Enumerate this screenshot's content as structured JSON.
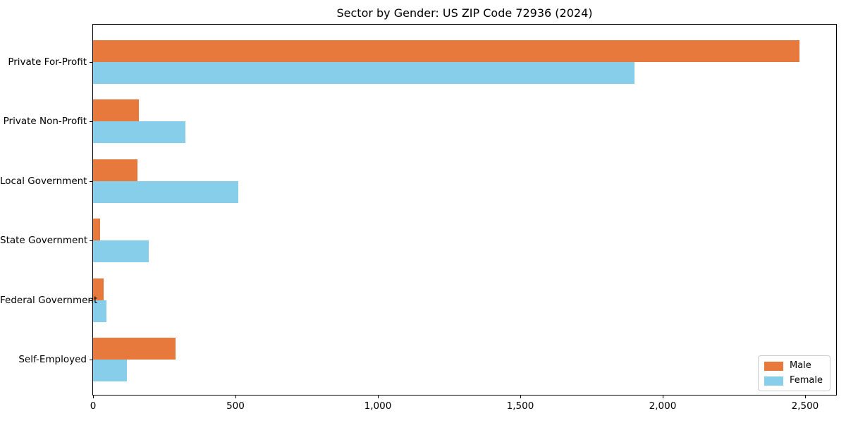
{
  "figure": {
    "title": "Sector by Gender: US ZIP Code 72936 (2024)"
  },
  "chart_data": {
    "type": "bar",
    "orientation": "horizontal",
    "title": "Sector by Gender: US ZIP Code 72936 (2024)",
    "categories": [
      "Private For-Profit",
      "Private Non-Profit",
      "Local Government",
      "State Government",
      "Federal Government",
      "Self-Employed"
    ],
    "series": [
      {
        "name": "Male",
        "color": "#e8793d",
        "values": [
          2480,
          160,
          155,
          25,
          38,
          290
        ]
      },
      {
        "name": "Female",
        "color": "#87ceeb",
        "values": [
          1900,
          325,
          510,
          195,
          46,
          120
        ]
      }
    ],
    "xlabel": "",
    "ylabel": "",
    "xlim": [
      0,
      2609
    ],
    "xticks": {
      "values": [
        0,
        500,
        1000,
        1500,
        2000,
        2500
      ],
      "labels": [
        "0",
        "500",
        "1,000",
        "1,500",
        "2,000",
        "2,500"
      ]
    },
    "legend": {
      "position": "lower right",
      "entries": [
        "Male",
        "Female"
      ]
    },
    "grid": false,
    "background": "#ffffff",
    "spine_color": "#000000"
  }
}
